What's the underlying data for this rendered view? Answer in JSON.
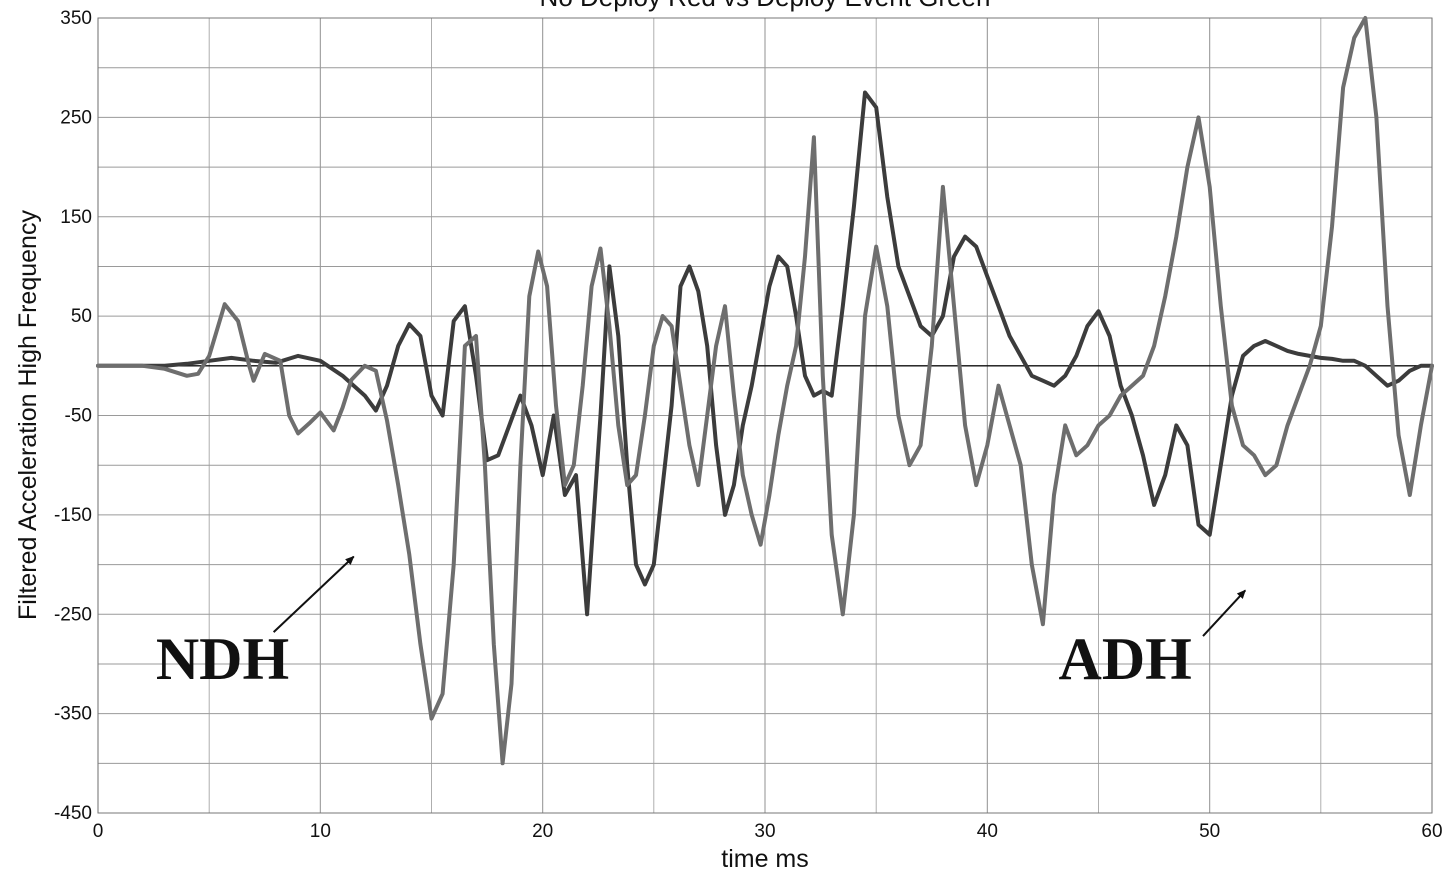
{
  "chart_data": {
    "type": "line",
    "title": "No Deploy Red vs Deploy Event Green",
    "xlabel": "time ms",
    "ylabel": "Filtered Acceleration High Frequency",
    "xlim": [
      0,
      60
    ],
    "ylim": [
      -450,
      350
    ],
    "xticks": [
      0,
      10,
      20,
      30,
      40,
      50,
      60
    ],
    "yticks": [
      350,
      250,
      150,
      50,
      -50,
      -150,
      -250,
      -350,
      -450
    ],
    "grid": true,
    "zero_line": true,
    "colors": {
      "dark_series": "#3c3c3c",
      "light_series": "#6e6e6e",
      "grid": "#9a9a9a"
    },
    "series": [
      {
        "points": [
          [
            0,
            0
          ],
          [
            2,
            0
          ],
          [
            3,
            -3
          ],
          [
            4,
            -10
          ],
          [
            4.5,
            -8
          ],
          [
            5,
            10
          ],
          [
            5.7,
            62
          ],
          [
            6.3,
            45
          ],
          [
            6.8,
            0
          ],
          [
            7,
            -15
          ],
          [
            7.5,
            12
          ],
          [
            8.2,
            5
          ],
          [
            8.6,
            -50
          ],
          [
            9,
            -68
          ],
          [
            9.5,
            -58
          ],
          [
            10,
            -47
          ],
          [
            10.6,
            -65
          ],
          [
            11,
            -42
          ],
          [
            11.4,
            -14
          ],
          [
            12,
            0
          ],
          [
            12.5,
            -5
          ],
          [
            13,
            -55
          ],
          [
            13.5,
            -120
          ],
          [
            14,
            -190
          ],
          [
            14.5,
            -280
          ],
          [
            15,
            -355
          ],
          [
            15.5,
            -330
          ],
          [
            16,
            -200
          ],
          [
            16.5,
            20
          ],
          [
            17,
            30
          ],
          [
            17.4,
            -100
          ],
          [
            17.8,
            -280
          ],
          [
            18.2,
            -400
          ],
          [
            18.6,
            -320
          ],
          [
            19,
            -100
          ],
          [
            19.4,
            70
          ],
          [
            19.8,
            115
          ],
          [
            20.2,
            80
          ],
          [
            20.6,
            -40
          ],
          [
            21,
            -120
          ],
          [
            21.4,
            -100
          ],
          [
            21.8,
            -20
          ],
          [
            22.2,
            80
          ],
          [
            22.6,
            118
          ],
          [
            23,
            40
          ],
          [
            23.4,
            -60
          ],
          [
            23.8,
            -120
          ],
          [
            24.2,
            -110
          ],
          [
            24.6,
            -50
          ],
          [
            25,
            20
          ],
          [
            25.4,
            50
          ],
          [
            25.8,
            40
          ],
          [
            26.2,
            -20
          ],
          [
            26.6,
            -80
          ],
          [
            27,
            -120
          ],
          [
            27.4,
            -50
          ],
          [
            27.8,
            20
          ],
          [
            28.2,
            60
          ],
          [
            28.6,
            -30
          ],
          [
            29,
            -110
          ],
          [
            29.4,
            -150
          ],
          [
            29.8,
            -180
          ],
          [
            30.2,
            -130
          ],
          [
            30.6,
            -70
          ],
          [
            31,
            -20
          ],
          [
            31.4,
            20
          ],
          [
            31.8,
            110
          ],
          [
            32.2,
            230
          ],
          [
            32.6,
            -10
          ],
          [
            33,
            -170
          ],
          [
            33.5,
            -250
          ],
          [
            34,
            -150
          ],
          [
            34.5,
            50
          ],
          [
            35,
            120
          ],
          [
            35.5,
            60
          ],
          [
            36,
            -50
          ],
          [
            36.5,
            -100
          ],
          [
            37,
            -80
          ],
          [
            37.5,
            20
          ],
          [
            38,
            180
          ],
          [
            38.5,
            60
          ],
          [
            39,
            -60
          ],
          [
            39.5,
            -120
          ],
          [
            40,
            -80
          ],
          [
            40.5,
            -20
          ],
          [
            41,
            -60
          ],
          [
            41.5,
            -100
          ],
          [
            42,
            -200
          ],
          [
            42.5,
            -260
          ],
          [
            43,
            -130
          ],
          [
            43.5,
            -60
          ],
          [
            44,
            -90
          ],
          [
            44.5,
            -80
          ],
          [
            45,
            -60
          ],
          [
            45.5,
            -50
          ],
          [
            46,
            -30
          ],
          [
            46.5,
            -20
          ],
          [
            47,
            -10
          ],
          [
            47.5,
            20
          ],
          [
            48,
            70
          ],
          [
            48.5,
            130
          ],
          [
            49,
            200
          ],
          [
            49.5,
            250
          ],
          [
            50,
            180
          ],
          [
            50.5,
            60
          ],
          [
            51,
            -40
          ],
          [
            51.5,
            -80
          ],
          [
            52,
            -90
          ],
          [
            52.5,
            -110
          ],
          [
            53,
            -100
          ],
          [
            53.5,
            -60
          ],
          [
            54,
            -30
          ],
          [
            54.5,
            0
          ],
          [
            55,
            40
          ],
          [
            55.5,
            140
          ],
          [
            56,
            280
          ],
          [
            56.5,
            330
          ],
          [
            57,
            350
          ],
          [
            57.5,
            250
          ],
          [
            58,
            60
          ],
          [
            58.5,
            -70
          ],
          [
            59,
            -130
          ],
          [
            59.5,
            -60
          ],
          [
            60,
            0
          ]
        ]
      },
      {
        "points": [
          [
            0,
            0
          ],
          [
            3,
            0
          ],
          [
            4,
            2
          ],
          [
            5,
            5
          ],
          [
            6,
            8
          ],
          [
            7,
            5
          ],
          [
            8,
            3
          ],
          [
            9,
            10
          ],
          [
            10,
            5
          ],
          [
            11,
            -10
          ],
          [
            12,
            -30
          ],
          [
            12.5,
            -45
          ],
          [
            13,
            -20
          ],
          [
            13.5,
            20
          ],
          [
            14,
            42
          ],
          [
            14.5,
            30
          ],
          [
            15,
            -30
          ],
          [
            15.5,
            -50
          ],
          [
            16,
            45
          ],
          [
            16.5,
            60
          ],
          [
            17,
            -10
          ],
          [
            17.5,
            -95
          ],
          [
            18,
            -90
          ],
          [
            18.5,
            -60
          ],
          [
            19,
            -30
          ],
          [
            19.5,
            -60
          ],
          [
            20,
            -110
          ],
          [
            20.5,
            -50
          ],
          [
            21,
            -130
          ],
          [
            21.5,
            -110
          ],
          [
            22,
            -250
          ],
          [
            22.3,
            -150
          ],
          [
            22.6,
            -50
          ],
          [
            23,
            100
          ],
          [
            23.4,
            30
          ],
          [
            23.8,
            -100
          ],
          [
            24.2,
            -200
          ],
          [
            24.6,
            -220
          ],
          [
            25,
            -200
          ],
          [
            25.4,
            -120
          ],
          [
            25.8,
            -40
          ],
          [
            26.2,
            80
          ],
          [
            26.6,
            100
          ],
          [
            27,
            75
          ],
          [
            27.4,
            20
          ],
          [
            27.8,
            -80
          ],
          [
            28.2,
            -150
          ],
          [
            28.6,
            -120
          ],
          [
            29,
            -60
          ],
          [
            29.4,
            -20
          ],
          [
            29.8,
            30
          ],
          [
            30.2,
            80
          ],
          [
            30.6,
            110
          ],
          [
            31,
            100
          ],
          [
            31.4,
            50
          ],
          [
            31.8,
            -10
          ],
          [
            32.2,
            -30
          ],
          [
            32.6,
            -25
          ],
          [
            33,
            -30
          ],
          [
            33.5,
            60
          ],
          [
            34,
            160
          ],
          [
            34.5,
            275
          ],
          [
            35,
            260
          ],
          [
            35.5,
            170
          ],
          [
            36,
            100
          ],
          [
            36.5,
            70
          ],
          [
            37,
            40
          ],
          [
            37.5,
            30
          ],
          [
            38,
            50
          ],
          [
            38.5,
            110
          ],
          [
            39,
            130
          ],
          [
            39.5,
            120
          ],
          [
            40,
            90
          ],
          [
            40.5,
            60
          ],
          [
            41,
            30
          ],
          [
            41.5,
            10
          ],
          [
            42,
            -10
          ],
          [
            42.5,
            -15
          ],
          [
            43,
            -20
          ],
          [
            43.5,
            -10
          ],
          [
            44,
            10
          ],
          [
            44.5,
            40
          ],
          [
            45,
            55
          ],
          [
            45.5,
            30
          ],
          [
            46,
            -20
          ],
          [
            46.5,
            -50
          ],
          [
            47,
            -90
          ],
          [
            47.5,
            -140
          ],
          [
            48,
            -110
          ],
          [
            48.5,
            -60
          ],
          [
            49,
            -80
          ],
          [
            49.5,
            -160
          ],
          [
            50,
            -170
          ],
          [
            50.5,
            -100
          ],
          [
            51,
            -30
          ],
          [
            51.5,
            10
          ],
          [
            52,
            20
          ],
          [
            52.5,
            25
          ],
          [
            53,
            20
          ],
          [
            53.5,
            15
          ],
          [
            54,
            12
          ],
          [
            54.5,
            10
          ],
          [
            55,
            8
          ],
          [
            55.5,
            7
          ],
          [
            56,
            5
          ],
          [
            56.5,
            5
          ],
          [
            57,
            0
          ],
          [
            57.5,
            -10
          ],
          [
            58,
            -20
          ],
          [
            58.5,
            -15
          ],
          [
            59,
            -5
          ],
          [
            59.5,
            0
          ],
          [
            60,
            0
          ]
        ]
      }
    ],
    "annotations": [
      {
        "text": "NDH",
        "x": 5.6,
        "y": -315,
        "arrow_from": [
          7.9,
          -268
        ],
        "arrow_to": [
          11.5,
          -192
        ]
      },
      {
        "text": "ADH",
        "x": 46.2,
        "y": -315,
        "arrow_from": [
          49.7,
          -272
        ],
        "arrow_to": [
          51.6,
          -226
        ]
      }
    ]
  }
}
